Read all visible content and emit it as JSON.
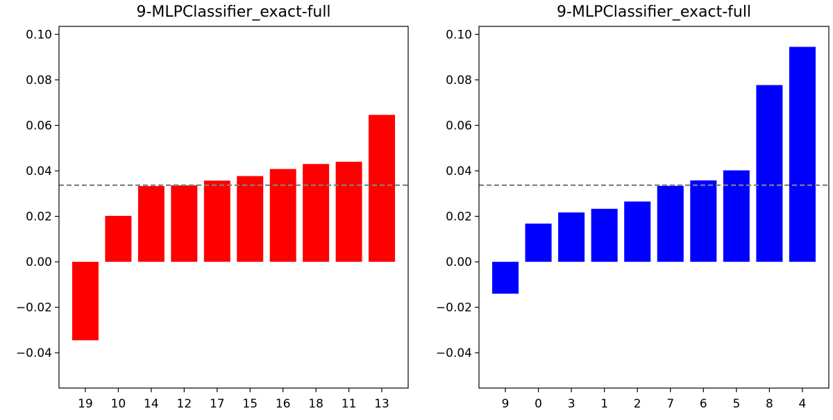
{
  "chart_data": [
    {
      "type": "bar",
      "title": "9-MLPClassifier_exact-full",
      "categories": [
        "19",
        "10",
        "14",
        "12",
        "17",
        "15",
        "16",
        "18",
        "11",
        "13"
      ],
      "values": [
        -0.0345,
        0.0202,
        0.0333,
        0.0336,
        0.0357,
        0.0377,
        0.0408,
        0.043,
        0.044,
        0.0646
      ],
      "bar_color": "#ff0000",
      "reference_line": 0.0337,
      "reference_line_color": "#808080",
      "reference_line_style": "dashed",
      "ylim": [
        -0.0555,
        0.1035
      ],
      "yticks": [
        "0.10",
        "0.08",
        "0.06",
        "0.04",
        "0.02",
        "0.00",
        "−0.02",
        "−0.04"
      ],
      "ytick_values": [
        0.1,
        0.08,
        0.06,
        0.04,
        0.02,
        0.0,
        -0.02,
        -0.04
      ],
      "grid": false,
      "xlabel": "",
      "ylabel": ""
    },
    {
      "type": "bar",
      "title": "9-MLPClassifier_exact-full",
      "categories": [
        "9",
        "0",
        "3",
        "1",
        "2",
        "7",
        "6",
        "5",
        "8",
        "4"
      ],
      "values": [
        -0.014,
        0.0168,
        0.0217,
        0.0233,
        0.0265,
        0.0334,
        0.0358,
        0.0402,
        0.0777,
        0.0945
      ],
      "bar_color": "#0000ff",
      "reference_line": 0.0337,
      "reference_line_color": "#808080",
      "reference_line_style": "dashed",
      "ylim": [
        -0.0555,
        0.1035
      ],
      "yticks": [
        "0.10",
        "0.08",
        "0.06",
        "0.04",
        "0.02",
        "0.00",
        "−0.02",
        "−0.04"
      ],
      "ytick_values": [
        0.1,
        0.08,
        0.06,
        0.04,
        0.02,
        0.0,
        -0.02,
        -0.04
      ],
      "grid": false,
      "xlabel": "",
      "ylabel": ""
    }
  ]
}
